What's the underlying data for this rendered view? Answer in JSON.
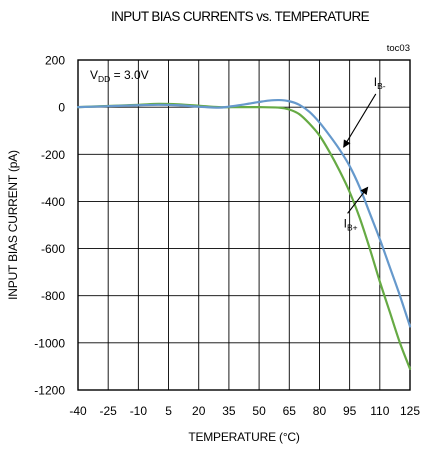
{
  "chart_data": {
    "type": "line",
    "title": "INPUT BIAS CURRENTS vs. TEMPERATURE",
    "tag": "toc03",
    "xlabel": "TEMPERATURE (°C)",
    "ylabel": "INPUT BIAS CURRENT (pA)",
    "xlim": [
      -40,
      125
    ],
    "ylim": [
      -1200,
      200
    ],
    "xticks": [
      -40,
      -25,
      -10,
      5,
      20,
      35,
      50,
      65,
      80,
      95,
      110,
      125
    ],
    "xtick_labels": [
      "-40",
      "-25",
      "-10",
      "5",
      "20",
      "35",
      "50",
      "65",
      "80",
      "95",
      "110",
      "125"
    ],
    "yticks": [
      200,
      0,
      -200,
      -400,
      -600,
      -800,
      -1000,
      -1200
    ],
    "ytick_labels": [
      "200",
      "0",
      "-200",
      "-400",
      "-600",
      "-800",
      "-1000",
      "-1200"
    ],
    "grid": true,
    "condition": {
      "prefix": "V",
      "subscript": "DD",
      "suffix": " = 3.0V"
    },
    "series": [
      {
        "name": "IB-",
        "label_main": "I",
        "label_sub": "B-",
        "color": "#6699cc",
        "x": [
          -40,
          -25,
          -10,
          0,
          10,
          20,
          30,
          35,
          40,
          45,
          50,
          55,
          60,
          65,
          70,
          75,
          80,
          85,
          90,
          95,
          100,
          105,
          110,
          115,
          120,
          125
        ],
        "y": [
          0,
          4,
          8,
          10,
          8,
          2,
          -2,
          2,
          8,
          15,
          22,
          28,
          30,
          25,
          10,
          -20,
          -65,
          -120,
          -180,
          -250,
          -340,
          -450,
          -560,
          -680,
          -800,
          -930
        ]
      },
      {
        "name": "IB+",
        "label_main": "I",
        "label_sub": "B+",
        "color": "#66aa44",
        "x": [
          -40,
          -25,
          -10,
          0,
          10,
          20,
          30,
          40,
          50,
          60,
          65,
          70,
          75,
          80,
          85,
          90,
          95,
          100,
          105,
          110,
          115,
          120,
          125
        ],
        "y": [
          0,
          5,
          10,
          14,
          12,
          6,
          0,
          0,
          0,
          -2,
          -10,
          -30,
          -70,
          -120,
          -190,
          -270,
          -360,
          -470,
          -600,
          -740,
          -870,
          -1000,
          -1110
        ]
      }
    ],
    "annotations": [
      {
        "series": "IB-",
        "label_at": [
          107,
          90
        ],
        "point_at": [
          92,
          -170
        ]
      },
      {
        "series": "IB+",
        "label_at": [
          92,
          -510
        ],
        "point_at": [
          104,
          -340
        ]
      }
    ]
  }
}
